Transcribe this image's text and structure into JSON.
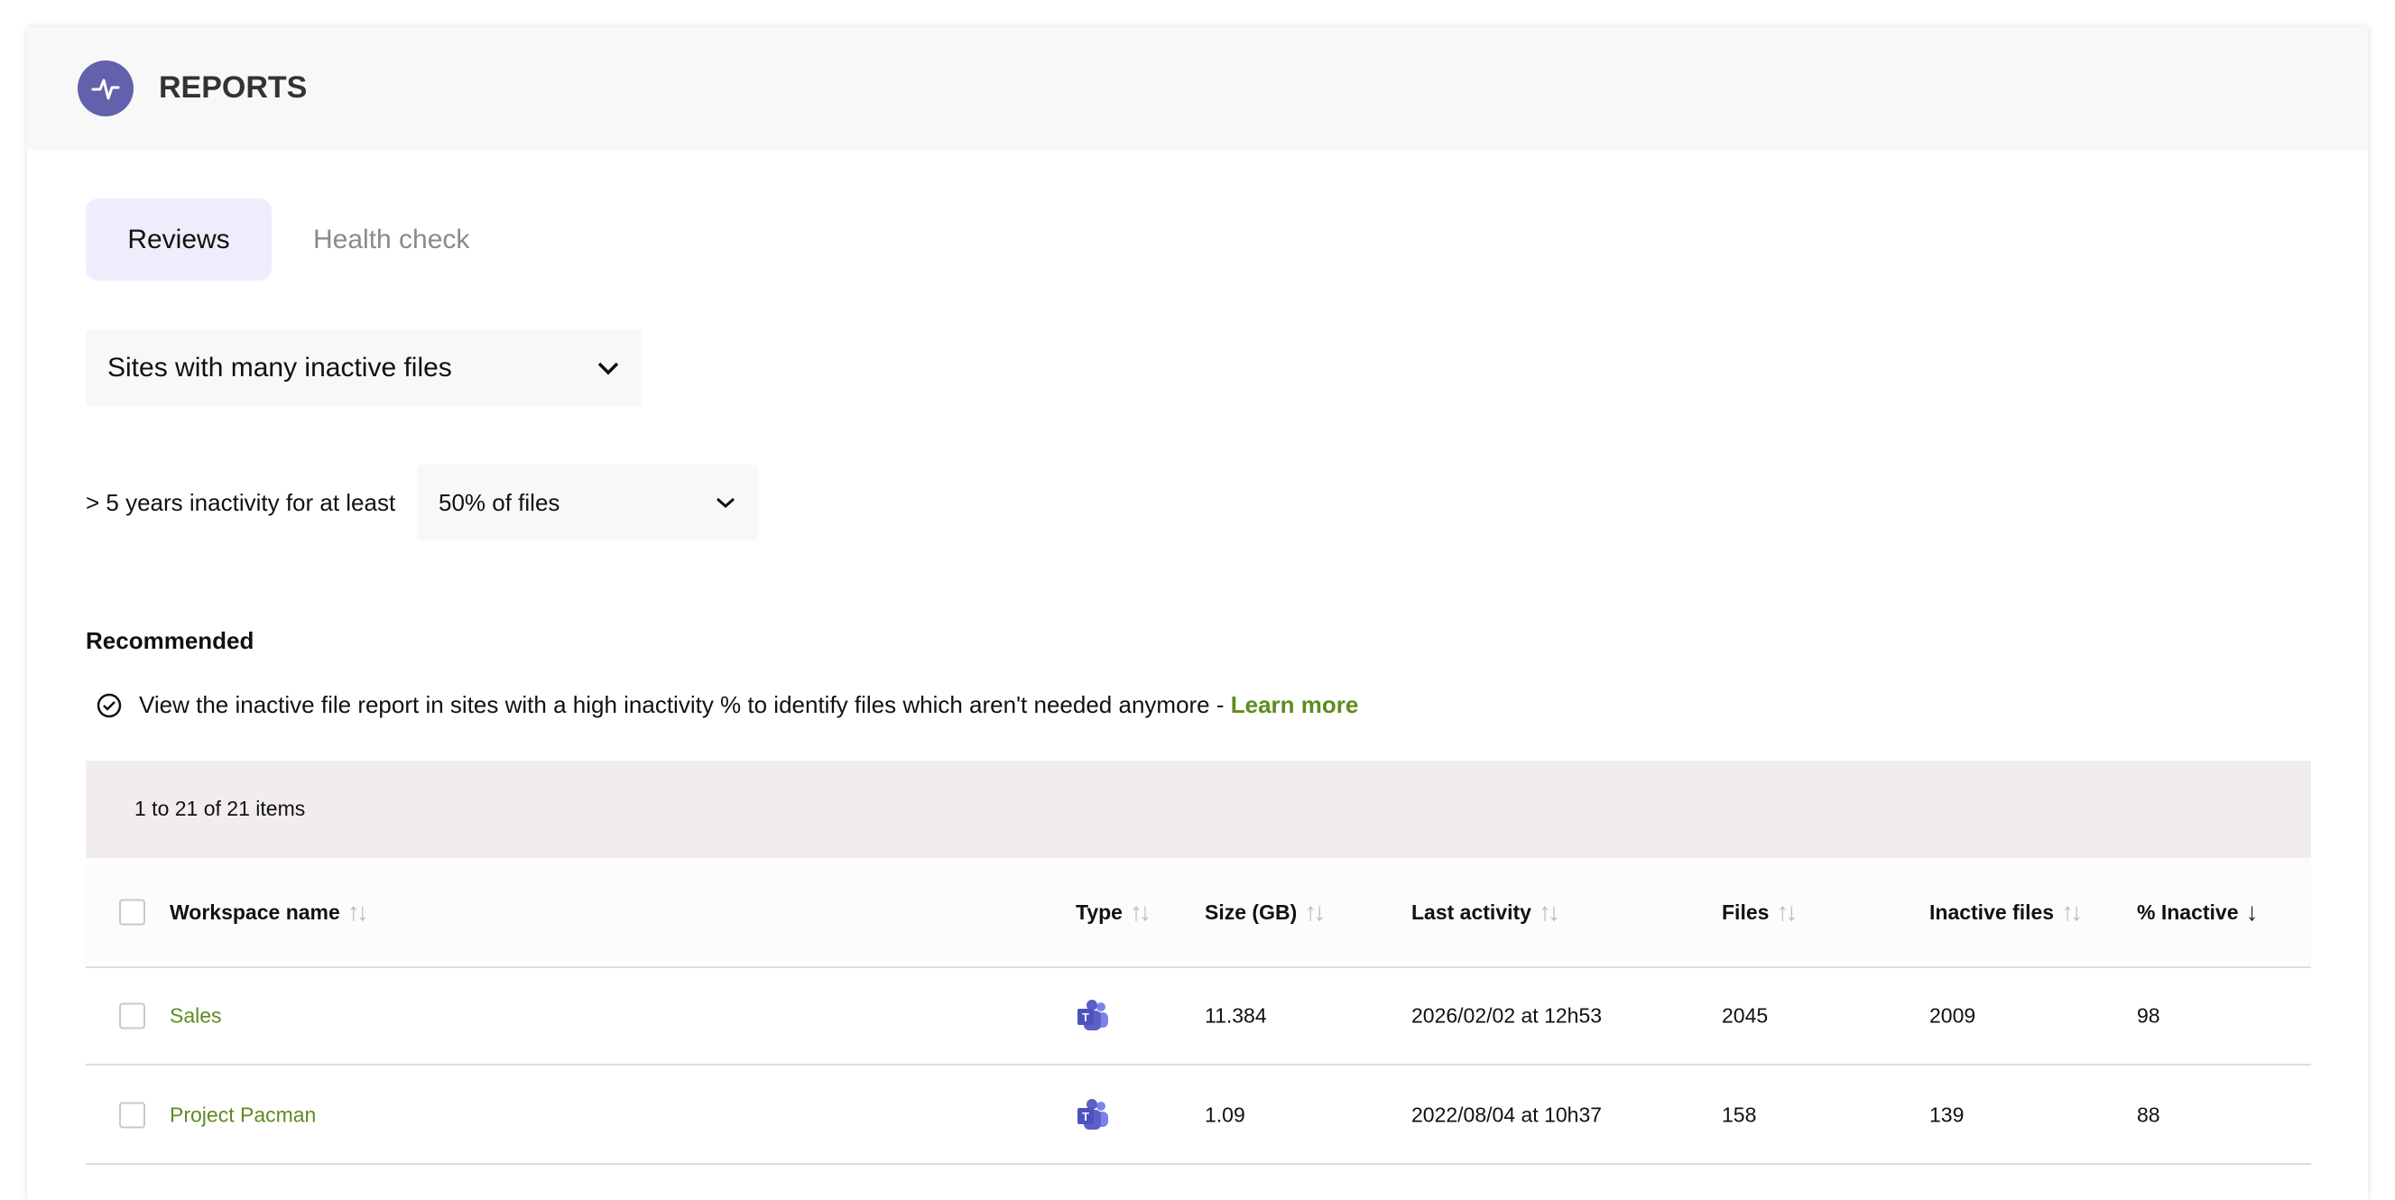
{
  "header": {
    "title": "REPORTS",
    "icon": "activity-pulse-icon"
  },
  "tabs": [
    {
      "label": "Reviews",
      "active": true
    },
    {
      "label": "Health check",
      "active": false
    }
  ],
  "report_select": {
    "value": "Sites with many inactive files"
  },
  "filter": {
    "label": "> 5 years inactivity for at least",
    "value": "50% of files"
  },
  "recommended": {
    "title": "Recommended",
    "text": "View the inactive file report in sites with a high inactivity % to identify files which aren't needed anymore - ",
    "link": "Learn more"
  },
  "table": {
    "count": "1 to 21 of 21 items",
    "columns": [
      "Workspace name",
      "Type",
      "Size (GB)",
      "Last activity",
      "Files",
      "Inactive files",
      "% Inactive"
    ],
    "sorted_column": "% Inactive",
    "sort_direction": "descending",
    "rows": [
      {
        "name": "Sales",
        "type": "teams-icon",
        "size": "11.384",
        "last_activity": "2026/02/02 at 12h53",
        "files": "2045",
        "inactive_files": "2009",
        "pct_inactive": "98"
      },
      {
        "name": "Project Pacman",
        "type": "teams-icon",
        "size": "1.09",
        "last_activity": "2022/08/04 at 10h37",
        "files": "158",
        "inactive_files": "139",
        "pct_inactive": "88"
      }
    ]
  },
  "colors": {
    "accent": "#6360ac",
    "link": "#5e8c1f",
    "teams": "#5b5fc7"
  }
}
